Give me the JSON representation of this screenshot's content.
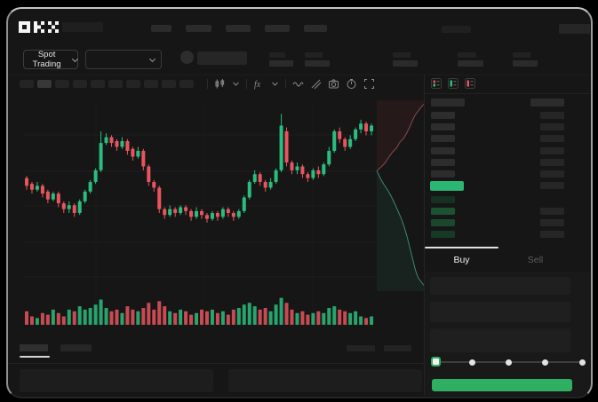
{
  "window": {
    "brand": "OKX"
  },
  "header": {
    "market_selector_label": "Spot Trading",
    "nav_item_count": 5,
    "left_stat_pair_count": 2,
    "right_stat_pair_count": 3
  },
  "toolbar": {
    "timeframe_chip_count": 10,
    "active_chip_index": 1,
    "icons": [
      "candles-icon",
      "chevron-down-icon",
      "indicators-icon",
      "chevron-down-icon",
      "wave-icon",
      "draw-line-icon",
      "camera-icon",
      "timer-icon",
      "fullscreen-icon"
    ]
  },
  "orderbook": {
    "view_icons": [
      "book-both-icon",
      "book-bids-icon",
      "book-asks-icon"
    ],
    "ask_row_count": 6,
    "bid_row_count": 4,
    "bid_bar_colors": [
      "#143122",
      "#1c5132",
      "#1a472d",
      "#163a26"
    ],
    "last_price_highlight_color": "#2bb673"
  },
  "trade_panel": {
    "tabs": [
      {
        "label": "Buy",
        "active": true
      },
      {
        "label": "Sell",
        "active": false
      }
    ],
    "field_count": 3,
    "slider": {
      "stop_count": 5,
      "active_stop": 0,
      "value_percent": 0
    },
    "submit_button_color": "#2eaf62"
  },
  "colors": {
    "up": "#2bbd7e",
    "down": "#e8555f",
    "panel_bg": "#161616"
  },
  "chart_data": {
    "type": "candlestick",
    "title": "",
    "note": "Skeleton/loading trading view: no axis tick labels are rendered. Prices normalized to 0-100 scale (100 = chart top).",
    "ylim": [
      0,
      100
    ],
    "grid": true,
    "candles": [
      [
        60,
        56,
        54,
        61
      ],
      [
        57,
        54,
        52,
        58
      ],
      [
        54,
        56,
        53,
        58
      ],
      [
        56,
        52,
        50,
        57
      ],
      [
        53,
        49,
        47,
        54
      ],
      [
        49,
        52,
        48,
        53
      ],
      [
        52,
        47,
        45,
        53
      ],
      [
        47,
        44,
        42,
        48
      ],
      [
        44,
        46,
        42,
        48
      ],
      [
        46,
        42,
        40,
        47
      ],
      [
        42,
        48,
        41,
        49
      ],
      [
        48,
        53,
        47,
        54
      ],
      [
        53,
        58,
        52,
        59
      ],
      [
        58,
        64,
        57,
        65
      ],
      [
        64,
        78,
        63,
        84
      ],
      [
        78,
        81,
        77,
        83
      ],
      [
        81,
        78,
        76,
        82
      ],
      [
        79,
        76,
        74,
        80
      ],
      [
        76,
        79,
        75,
        81
      ],
      [
        79,
        74,
        72,
        80
      ],
      [
        75,
        71,
        69,
        76
      ],
      [
        71,
        74,
        70,
        76
      ],
      [
        74,
        66,
        64,
        75
      ],
      [
        66,
        58,
        56,
        67
      ],
      [
        58,
        55,
        53,
        59
      ],
      [
        55,
        44,
        42,
        56
      ],
      [
        44,
        41,
        39,
        45
      ],
      [
        41,
        44,
        40,
        46
      ],
      [
        44,
        42,
        40,
        45
      ],
      [
        42,
        45,
        41,
        46
      ],
      [
        45,
        43,
        41,
        46
      ],
      [
        43,
        40,
        38,
        44
      ],
      [
        40,
        43,
        39,
        45
      ],
      [
        43,
        41,
        39,
        44
      ],
      [
        41,
        39,
        37,
        42
      ],
      [
        39,
        42,
        38,
        43
      ],
      [
        42,
        40,
        38,
        43
      ],
      [
        40,
        44,
        39,
        45
      ],
      [
        44,
        42,
        40,
        45
      ],
      [
        42,
        40,
        38,
        43
      ],
      [
        40,
        43,
        39,
        44
      ],
      [
        43,
        50,
        42,
        51
      ],
      [
        50,
        58,
        49,
        59
      ],
      [
        58,
        62,
        57,
        64
      ],
      [
        62,
        58,
        56,
        63
      ],
      [
        58,
        55,
        53,
        59
      ],
      [
        55,
        58,
        54,
        60
      ],
      [
        58,
        64,
        57,
        65
      ],
      [
        64,
        87,
        63,
        93
      ],
      [
        84,
        68,
        66,
        86
      ],
      [
        68,
        64,
        62,
        69
      ],
      [
        64,
        66,
        62,
        68
      ],
      [
        66,
        62,
        60,
        67
      ],
      [
        62,
        60,
        58,
        63
      ],
      [
        60,
        64,
        59,
        65
      ],
      [
        64,
        62,
        60,
        66
      ],
      [
        62,
        67,
        61,
        68
      ],
      [
        67,
        74,
        66,
        76
      ],
      [
        74,
        84,
        73,
        85
      ],
      [
        84,
        80,
        78,
        86
      ],
      [
        80,
        76,
        74,
        81
      ],
      [
        76,
        80,
        75,
        82
      ],
      [
        80,
        85,
        79,
        86
      ],
      [
        85,
        88,
        83,
        90
      ],
      [
        88,
        84,
        82,
        89
      ],
      [
        84,
        87,
        82,
        88
      ]
    ],
    "volume": [
      8,
      5,
      4,
      7,
      6,
      9,
      7,
      5,
      9,
      8,
      11,
      9,
      10,
      12,
      15,
      10,
      8,
      9,
      7,
      11,
      9,
      8,
      10,
      13,
      9,
      14,
      11,
      8,
      7,
      9,
      8,
      6,
      7,
      9,
      8,
      9,
      7,
      8,
      6,
      9,
      10,
      12,
      13,
      11,
      9,
      10,
      8,
      12,
      16,
      13,
      9,
      7,
      8,
      6,
      7,
      8,
      7,
      10,
      11,
      9,
      8,
      7,
      8,
      5,
      4,
      5
    ],
    "depth_overlay": {
      "asks": [
        [
          0,
          37
        ],
        [
          9,
          35
        ],
        [
          17,
          33
        ],
        [
          25,
          30
        ],
        [
          34,
          27
        ],
        [
          42,
          25
        ],
        [
          49,
          22
        ],
        [
          57,
          20
        ],
        [
          64,
          17
        ],
        [
          70,
          14
        ],
        [
          75,
          11
        ],
        [
          81,
          8
        ],
        [
          87,
          6
        ],
        [
          93,
          4
        ],
        [
          100,
          2
        ]
      ],
      "bids": [
        [
          0,
          37
        ],
        [
          8,
          41
        ],
        [
          15,
          44
        ],
        [
          23,
          47
        ],
        [
          30,
          50
        ],
        [
          38,
          54
        ],
        [
          45,
          58
        ],
        [
          52,
          62
        ],
        [
          58,
          66
        ],
        [
          64,
          71
        ],
        [
          70,
          77
        ],
        [
          76,
          83
        ],
        [
          82,
          89
        ],
        [
          88,
          93
        ],
        [
          100,
          97
        ]
      ]
    }
  }
}
